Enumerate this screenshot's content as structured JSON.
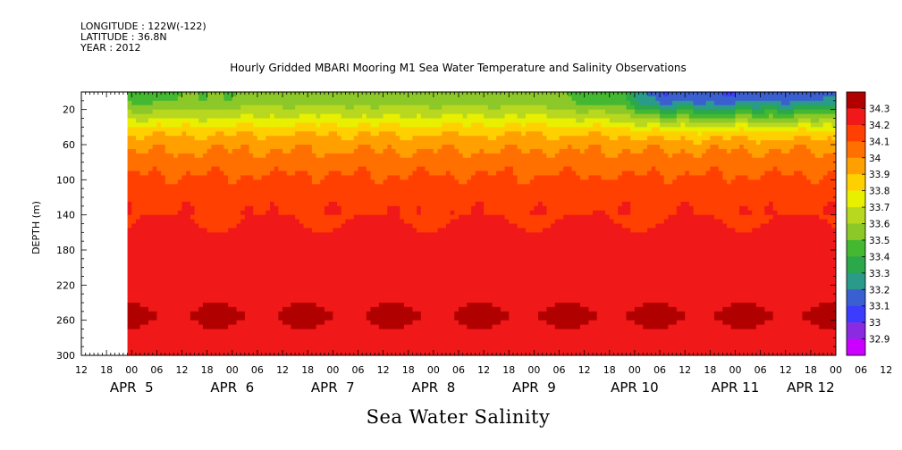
{
  "header": {
    "longitude": "LONGITUDE : 122W(-122)",
    "latitude": "LATITUDE : 36.8N",
    "year": "YEAR : 2012"
  },
  "chart_data": {
    "type": "heatmap",
    "title": "Hourly Gridded MBARI Mooring M1 Sea Water Temperature and Salinity Observations",
    "caption": "Sea Water Salinity",
    "ylabel": "DEPTH (m)",
    "xlabel": "",
    "xlim_hours": [
      12,
      192
    ],
    "data_start_hour": 23,
    "ylim": [
      300,
      0
    ],
    "y_ticks": [
      20,
      60,
      100,
      140,
      180,
      220,
      260,
      300
    ],
    "x_hour_ticks": [
      "12",
      "18",
      "00",
      "06",
      "12",
      "18",
      "00",
      "06",
      "12",
      "18",
      "00",
      "06",
      "12",
      "18",
      "00",
      "06",
      "12",
      "18",
      "00",
      "06",
      "12",
      "18",
      "00",
      "06",
      "12",
      "18",
      "00",
      "06",
      "12",
      "18",
      "00",
      "06",
      "12"
    ],
    "x_day_labels": [
      {
        "label": "APR  5",
        "hour": 24
      },
      {
        "label": "APR  6",
        "hour": 48
      },
      {
        "label": "APR  7",
        "hour": 72
      },
      {
        "label": "APR  8",
        "hour": 96
      },
      {
        "label": "APR  9",
        "hour": 120
      },
      {
        "label": "APR 10",
        "hour": 144
      },
      {
        "label": "APR 11",
        "hour": 168
      },
      {
        "label": "APR 12",
        "hour": 186
      }
    ],
    "color_levels": [
      32.9,
      33,
      33.1,
      33.2,
      33.3,
      33.4,
      33.5,
      33.6,
      33.7,
      33.8,
      33.9,
      34,
      34.1,
      34.2,
      34.3
    ],
    "colorbar_labels": [
      "34.3",
      "34.2",
      "34.1",
      "34",
      "33.9",
      "33.8",
      "33.7",
      "33.6",
      "33.5",
      "33.4",
      "33.3",
      "33.2",
      "33.1",
      "33",
      "32.9"
    ],
    "colors": [
      "#cc00ff",
      "#8a2be2",
      "#3c3cff",
      "#3a5fd0",
      "#2a9a8a",
      "#2aa84a",
      "#44b830",
      "#8cc828",
      "#b8d820",
      "#e8f000",
      "#ffd000",
      "#ffa000",
      "#ff7000",
      "#ff4000",
      "#f01818",
      "#b00000"
    ],
    "depth_profile": [
      {
        "depth": 10,
        "salinity": 33.55
      },
      {
        "depth": 30,
        "salinity": 33.72
      },
      {
        "depth": 45,
        "salinity": 33.88
      },
      {
        "depth": 60,
        "salinity": 33.97
      },
      {
        "depth": 80,
        "salinity": 34.05
      },
      {
        "depth": 100,
        "salinity": 34.12
      },
      {
        "depth": 130,
        "salinity": 34.18
      },
      {
        "depth": 160,
        "salinity": 34.22
      },
      {
        "depth": 200,
        "salinity": 34.24
      },
      {
        "depth": 230,
        "salinity": 34.27
      },
      {
        "depth": 255,
        "salinity": 34.31
      },
      {
        "depth": 280,
        "salinity": 34.27
      },
      {
        "depth": 300,
        "salinity": 34.26
      }
    ],
    "surface_freshening": [
      {
        "hour": 23,
        "salinity": 33.45
      },
      {
        "hour": 60,
        "salinity": 33.55
      },
      {
        "hour": 120,
        "salinity": 33.55
      },
      {
        "hour": 140,
        "salinity": 33.4
      },
      {
        "hour": 150,
        "salinity": 33.1
      },
      {
        "hour": 170,
        "salinity": 33.1
      },
      {
        "hour": 192,
        "salinity": 33.15
      }
    ]
  }
}
